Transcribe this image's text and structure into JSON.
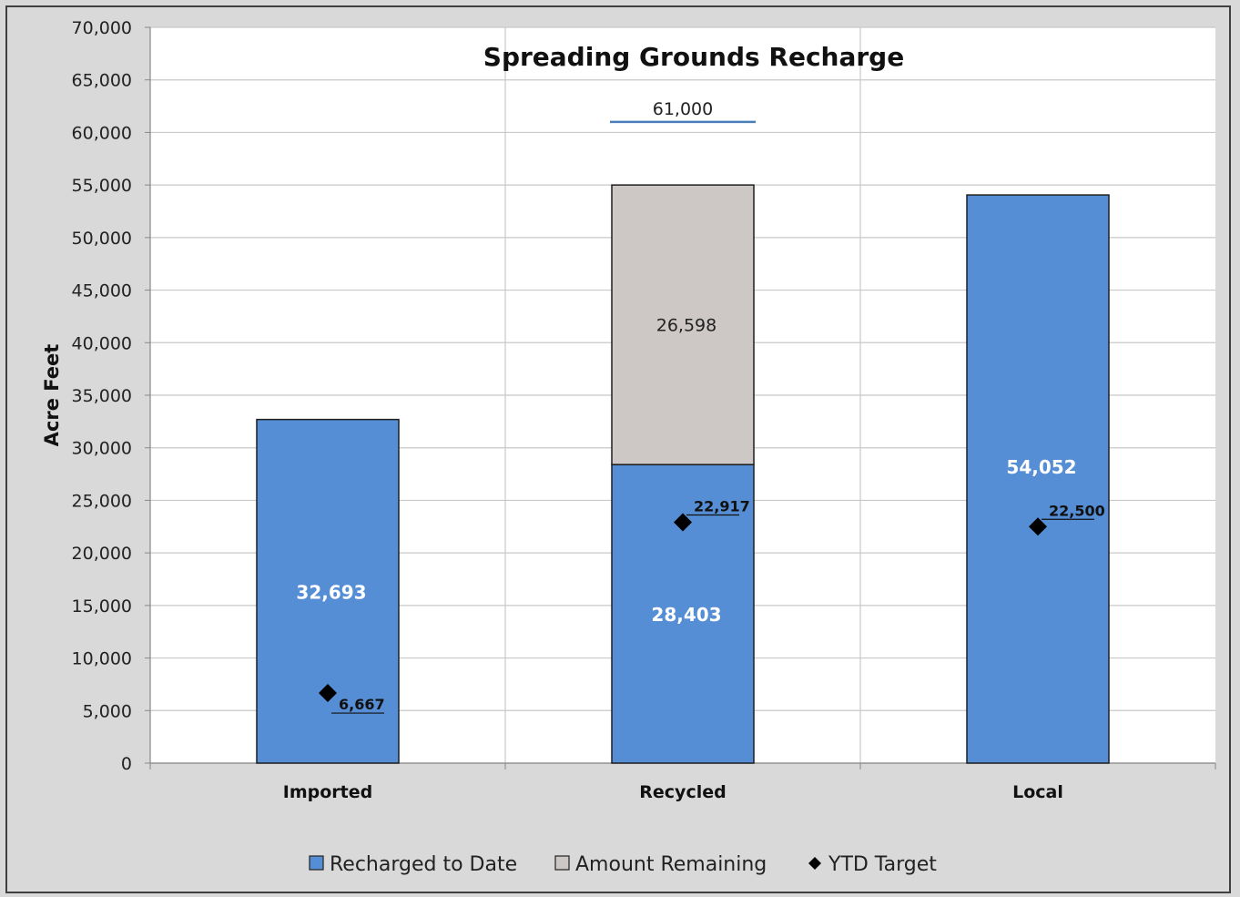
{
  "chart_data": {
    "type": "bar",
    "stacked": true,
    "title": "Spreading Grounds Recharge",
    "ylabel": "Acre Feet",
    "xlabel": "",
    "ylim": [
      0,
      70000
    ],
    "ytick_step": 5000,
    "yticks": [
      "0",
      "5,000",
      "10,000",
      "15,000",
      "20,000",
      "25,000",
      "30,000",
      "35,000",
      "40,000",
      "45,000",
      "50,000",
      "55,000",
      "60,000",
      "65,000",
      "70,000"
    ],
    "grid": true,
    "legend_position": "bottom",
    "categories": [
      "Imported",
      "Recycled",
      "Local"
    ],
    "series": [
      {
        "name": "Recharged to Date",
        "color": "#558ed5",
        "values": [
          32693,
          28403,
          54052
        ],
        "labels": [
          "32,693",
          "28,403",
          "54,052"
        ]
      },
      {
        "name": "Amount Remaining",
        "color": "#cdc7c5",
        "values": [
          0,
          26598,
          0
        ],
        "labels": [
          "",
          "26,598",
          ""
        ]
      }
    ],
    "markers": {
      "name": "YTD Target",
      "values": [
        6667,
        22917,
        22500
      ],
      "labels": [
        "6,667",
        "22,917",
        "22,500"
      ]
    },
    "goal_line": {
      "category": "Recycled",
      "value": 61000,
      "label": "61,000",
      "color": "#4a7ebb"
    }
  }
}
